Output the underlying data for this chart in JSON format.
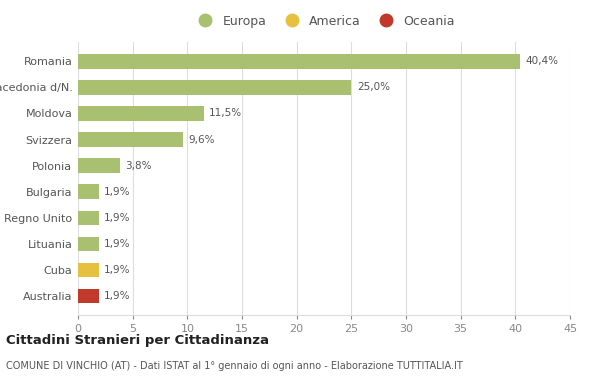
{
  "categories": [
    "Australia",
    "Cuba",
    "Lituania",
    "Regno Unito",
    "Bulgaria",
    "Polonia",
    "Svizzera",
    "Moldova",
    "Macedonia d/N.",
    "Romania"
  ],
  "values": [
    1.9,
    1.9,
    1.9,
    1.9,
    1.9,
    3.8,
    9.6,
    11.5,
    25.0,
    40.4
  ],
  "labels": [
    "1,9%",
    "1,9%",
    "1,9%",
    "1,9%",
    "1,9%",
    "3,8%",
    "9,6%",
    "11,5%",
    "25,0%",
    "40,4%"
  ],
  "colors": [
    "#c0392b",
    "#e8c040",
    "#a8c070",
    "#a8c070",
    "#a8c070",
    "#a8c070",
    "#a8c070",
    "#a8c070",
    "#a8c070",
    "#a8c070"
  ],
  "europa_color": "#a8c070",
  "america_color": "#e8c040",
  "oceania_color": "#c0392b",
  "title": "Cittadini Stranieri per Cittadinanza",
  "subtitle": "COMUNE DI VINCHIO (AT) - Dati ISTAT al 1° gennaio di ogni anno - Elaborazione TUTTITALIA.IT",
  "xlim": [
    0,
    45
  ],
  "xticks": [
    0,
    5,
    10,
    15,
    20,
    25,
    30,
    35,
    40,
    45
  ],
  "legend_labels": [
    "Europa",
    "America",
    "Oceania"
  ],
  "bg_color": "#ffffff",
  "grid_color": "#dddddd",
  "bar_height": 0.55,
  "label_color": "#555555",
  "tick_color": "#888888"
}
